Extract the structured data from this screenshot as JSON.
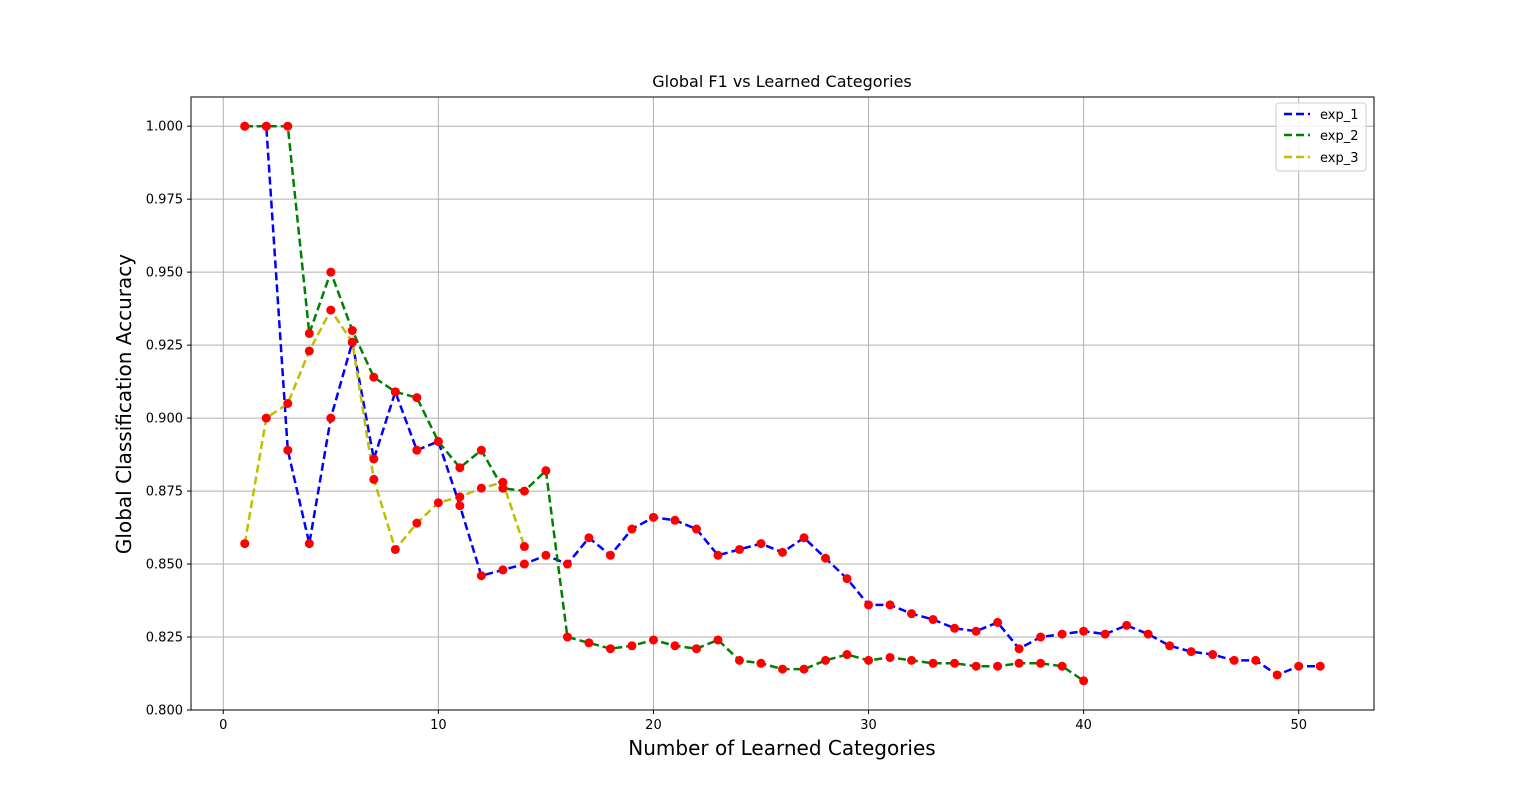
{
  "chart_data": {
    "type": "line",
    "title": "Global F1 vs Learned Categories",
    "xlabel": "Number of Learned Categories",
    "ylabel": "Global Classification Accuracy",
    "xlim": [
      -1.5,
      53.5
    ],
    "ylim": [
      0.8,
      1.01
    ],
    "xticks": [
      0,
      10,
      20,
      30,
      40,
      50
    ],
    "yticks": [
      0.8,
      0.825,
      0.85,
      0.875,
      0.9,
      0.925,
      0.95,
      0.975,
      1.0
    ],
    "ytick_labels": [
      "0.800",
      "0.825",
      "0.850",
      "0.875",
      "0.900",
      "0.925",
      "0.950",
      "0.975",
      "1.000"
    ],
    "grid": true,
    "legend_position": "top-right",
    "marker_color": "#ff0000",
    "series": [
      {
        "name": "exp_1",
        "color": "#0000ff",
        "x": [
          1,
          2,
          3,
          4,
          5,
          6,
          7,
          8,
          9,
          10,
          11,
          12,
          13,
          14,
          15,
          16,
          17,
          18,
          19,
          20,
          21,
          22,
          23,
          24,
          25,
          26,
          27,
          28,
          29,
          30,
          31,
          32,
          33,
          34,
          35,
          36,
          37,
          38,
          39,
          40,
          41,
          42,
          43,
          44,
          45,
          46,
          47,
          48,
          49,
          50,
          51
        ],
        "y": [
          1.0,
          1.0,
          0.889,
          0.857,
          0.9,
          0.926,
          0.886,
          0.909,
          0.889,
          0.892,
          0.87,
          0.846,
          0.848,
          0.85,
          0.853,
          0.85,
          0.859,
          0.853,
          0.862,
          0.866,
          0.865,
          0.862,
          0.853,
          0.855,
          0.857,
          0.854,
          0.859,
          0.852,
          0.845,
          0.836,
          0.836,
          0.833,
          0.831,
          0.828,
          0.827,
          0.83,
          0.821,
          0.825,
          0.826,
          0.827,
          0.826,
          0.829,
          0.826,
          0.822,
          0.82,
          0.819,
          0.817,
          0.817,
          0.812,
          0.815,
          0.815
        ]
      },
      {
        "name": "exp_2",
        "color": "#008000",
        "x": [
          1,
          2,
          3,
          4,
          5,
          6,
          7,
          8,
          9,
          10,
          11,
          12,
          13,
          14,
          15,
          16,
          17,
          18,
          19,
          20,
          21,
          22,
          23,
          24,
          25,
          26,
          27,
          28,
          29,
          30,
          31,
          32,
          33,
          34,
          35,
          36,
          37,
          38,
          39,
          40
        ],
        "y": [
          1.0,
          1.0,
          1.0,
          0.929,
          0.95,
          0.93,
          0.914,
          0.909,
          0.907,
          0.892,
          0.883,
          0.889,
          0.876,
          0.875,
          0.882,
          0.825,
          0.823,
          0.821,
          0.822,
          0.824,
          0.822,
          0.821,
          0.824,
          0.817,
          0.816,
          0.814,
          0.814,
          0.817,
          0.819,
          0.817,
          0.818,
          0.817,
          0.816,
          0.816,
          0.815,
          0.815,
          0.816,
          0.816,
          0.815,
          0.81
        ]
      },
      {
        "name": "exp_3",
        "color": "#bfbf00",
        "x": [
          1,
          2,
          3,
          4,
          5,
          6,
          7,
          8,
          9,
          10,
          11,
          12,
          13,
          14
        ],
        "y": [
          0.857,
          0.9,
          0.905,
          0.923,
          0.937,
          0.926,
          0.879,
          0.855,
          0.864,
          0.871,
          0.873,
          0.876,
          0.878,
          0.856
        ]
      }
    ]
  }
}
